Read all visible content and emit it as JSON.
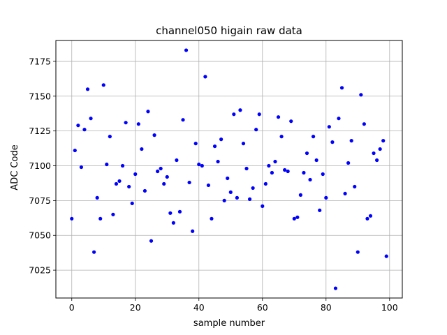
{
  "chart_data": {
    "type": "scatter",
    "title": "channel050 higain raw data",
    "xlabel": "sample number",
    "ylabel": "ADC Code",
    "xlim": [
      -5,
      104
    ],
    "ylim": [
      7005,
      7190
    ],
    "xticks": [
      0,
      20,
      40,
      60,
      80,
      100
    ],
    "yticks": [
      7025,
      7050,
      7075,
      7100,
      7125,
      7150,
      7175
    ],
    "grid": true,
    "marker_color": "#0000ff",
    "x": [
      0,
      1,
      2,
      3,
      4,
      5,
      6,
      7,
      8,
      9,
      10,
      11,
      12,
      13,
      14,
      15,
      16,
      17,
      18,
      19,
      20,
      21,
      22,
      23,
      24,
      25,
      26,
      27,
      28,
      29,
      30,
      31,
      32,
      33,
      34,
      35,
      36,
      37,
      38,
      39,
      40,
      41,
      42,
      43,
      44,
      45,
      46,
      47,
      48,
      49,
      50,
      51,
      52,
      53,
      54,
      55,
      56,
      57,
      58,
      59,
      60,
      61,
      62,
      63,
      64,
      65,
      66,
      67,
      68,
      69,
      70,
      71,
      72,
      73,
      74,
      75,
      76,
      77,
      78,
      79,
      80,
      81,
      82,
      83,
      84,
      85,
      86,
      87,
      88,
      89,
      90,
      91,
      92,
      93,
      94,
      95,
      96,
      97,
      98,
      99
    ],
    "y": [
      7062,
      7111,
      7129,
      7099,
      7126,
      7155,
      7134,
      7038,
      7077,
      7062,
      7158,
      7101,
      7121,
      7065,
      7087,
      7089,
      7100,
      7131,
      7085,
      7073,
      7094,
      7130,
      7112,
      7082,
      7139,
      7046,
      7122,
      7096,
      7098,
      7087,
      7092,
      7066,
      7059,
      7104,
      7067,
      7133,
      7183,
      7088,
      7053,
      7116,
      7101,
      7100,
      7164,
      7086,
      7062,
      7114,
      7103,
      7119,
      7075,
      7091,
      7081,
      7137,
      7077,
      7140,
      7116,
      7098,
      7076,
      7084,
      7126,
      7137,
      7071,
      7087,
      7100,
      7095,
      7103,
      7135,
      7121,
      7097,
      7096,
      7132,
      7062,
      7063,
      7079,
      7095,
      7109,
      7090,
      7121,
      7104,
      7068,
      7094,
      7077,
      7128,
      7117,
      7012,
      7134,
      7156,
      7080,
      7102,
      7118,
      7085,
      7038,
      7151,
      7130,
      7062,
      7064,
      7109,
      7104,
      7112,
      7118,
      7035
    ]
  }
}
